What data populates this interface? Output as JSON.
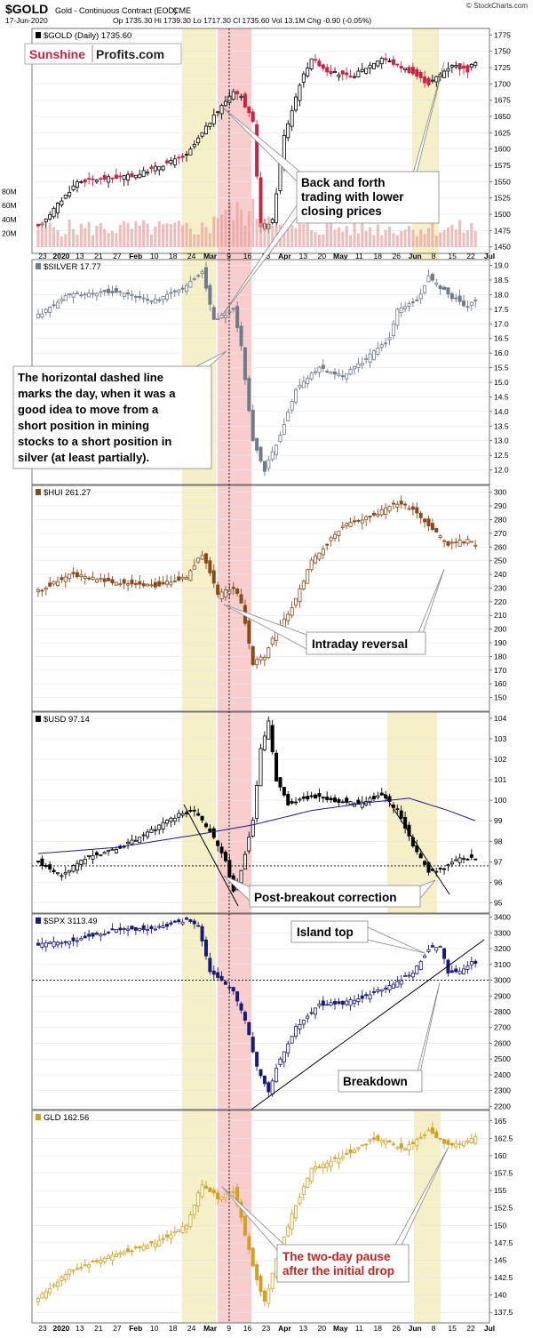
{
  "header": {
    "symbol": "$GOLD",
    "title": "Gold - Continuous Contract (EOD)",
    "exchange": "CME",
    "date": "17-Jun-2020",
    "ohlc": "Op 1735.30  Hi 1739.30  Lo 1717.30  Cl 1735.60  Vol 13.1M  Chg -0.90 (-0.05%)",
    "source": "© StockCharts.com"
  },
  "logo": {
    "part1": "Sunshine",
    "part2": "Profits.com"
  },
  "colors": {
    "up": "#000000",
    "shade_yellow": "#f6f0c8",
    "shade_red": "#f5c0c0",
    "callout_bg": "#ffffff",
    "ma_line": "#1a1a99",
    "volume": "#e8a0a0",
    "annotation_red": "#cc2222"
  },
  "x_axis": {
    "top_ticks": [
      "23",
      "2020",
      "13",
      "21",
      "27",
      "Feb",
      "10",
      "18",
      "24",
      "Mar",
      "9",
      "16",
      "23",
      "Apr",
      "13",
      "20",
      "May",
      "11",
      "18",
      "26",
      "Jun",
      "8",
      "15",
      "22",
      "Jul"
    ],
    "bottom_ticks": [
      "23",
      "2020",
      "13",
      "21",
      "27",
      "Feb",
      "10",
      "18",
      "24",
      "Mar",
      "9",
      "16",
      "23",
      "Apr",
      "13",
      "20",
      "May",
      "11",
      "18",
      "26",
      "Jun",
      "8",
      "15",
      "22",
      "Jul"
    ]
  },
  "annotations": {
    "back_forth": [
      "Back and forth",
      "trading with lower",
      "closing prices"
    ],
    "dashed_line": [
      "The horizontal dashed line",
      "marks the day, when it was a",
      "good idea to move from a",
      "short position in mining",
      "stocks to a short position in",
      "silver (at least partially)."
    ],
    "intraday_reversal": "Intraday reversal",
    "post_breakout": "Post-breakout correction",
    "island_top": "Island top",
    "breakdown": "Breakdown",
    "two_day_pause": [
      "The two-day pause",
      "after the initial drop"
    ]
  },
  "chart_data": [
    {
      "type": "candlestick",
      "name": "gold",
      "label": "$GOLD (Daily) 1735.60",
      "color": "#000000",
      "down_color": "#cc2244",
      "ylim": [
        1440,
        1785
      ],
      "y_ticks": [
        1450,
        1475,
        1500,
        1525,
        1550,
        1575,
        1600,
        1625,
        1650,
        1675,
        1700,
        1725,
        1750,
        1775
      ],
      "key_points": [
        [
          0,
          1480
        ],
        [
          10,
          1550
        ],
        [
          25,
          1560
        ],
        [
          38,
          1590
        ],
        [
          45,
          1650
        ],
        [
          50,
          1690
        ],
        [
          52,
          1680
        ],
        [
          55,
          1640
        ],
        [
          57,
          1480
        ],
        [
          60,
          1490
        ],
        [
          63,
          1620
        ],
        [
          67,
          1700
        ],
        [
          70,
          1740
        ],
        [
          74,
          1720
        ],
        [
          80,
          1710
        ],
        [
          88,
          1740
        ],
        [
          95,
          1720
        ],
        [
          100,
          1700
        ],
        [
          106,
          1730
        ],
        [
          110,
          1720
        ],
        [
          112,
          1735
        ]
      ],
      "volume": {
        "labels": [
          "80M",
          "60M",
          "40M",
          "20M"
        ],
        "values": [
          80,
          60,
          40,
          20
        ]
      },
      "last": 1735.6
    },
    {
      "type": "candlestick",
      "name": "silver",
      "label": "$SILVER 17.77",
      "color": "#707b88",
      "ylim": [
        11.5,
        19.2
      ],
      "y_ticks": [
        12.0,
        12.5,
        13.0,
        13.5,
        14.0,
        14.5,
        15.0,
        15.5,
        16.0,
        16.5,
        17.0,
        17.5,
        18.0,
        18.5,
        19.0
      ],
      "key_points": [
        [
          0,
          17.3
        ],
        [
          8,
          18.0
        ],
        [
          20,
          18.1
        ],
        [
          30,
          17.8
        ],
        [
          38,
          18.3
        ],
        [
          42,
          18.8
        ],
        [
          45,
          17.1
        ],
        [
          50,
          17.5
        ],
        [
          52,
          16.2
        ],
        [
          55,
          13.0
        ],
        [
          58,
          12.0
        ],
        [
          62,
          13.2
        ],
        [
          66,
          14.8
        ],
        [
          72,
          15.5
        ],
        [
          78,
          15.2
        ],
        [
          84,
          15.8
        ],
        [
          90,
          16.5
        ],
        [
          92,
          17.5
        ],
        [
          97,
          17.8
        ],
        [
          100,
          18.6
        ],
        [
          105,
          18.0
        ],
        [
          110,
          17.6
        ],
        [
          112,
          17.77
        ]
      ],
      "last": 17.77
    },
    {
      "type": "candlestick",
      "name": "hui",
      "label": "$HUI 261.27",
      "color": "#8b4a1c",
      "ylim": [
        140,
        305
      ],
      "y_ticks": [
        150,
        160,
        170,
        180,
        190,
        200,
        210,
        220,
        230,
        240,
        250,
        260,
        270,
        280,
        290,
        300
      ],
      "key_points": [
        [
          0,
          228
        ],
        [
          8,
          240
        ],
        [
          18,
          235
        ],
        [
          30,
          232
        ],
        [
          38,
          238
        ],
        [
          42,
          255
        ],
        [
          46,
          225
        ],
        [
          50,
          230
        ],
        [
          52,
          220
        ],
        [
          55,
          175
        ],
        [
          58,
          180
        ],
        [
          61,
          200
        ],
        [
          65,
          215
        ],
        [
          70,
          250
        ],
        [
          78,
          275
        ],
        [
          85,
          282
        ],
        [
          92,
          292
        ],
        [
          96,
          288
        ],
        [
          100,
          275
        ],
        [
          105,
          262
        ],
        [
          110,
          265
        ],
        [
          112,
          261
        ]
      ],
      "last": 261.27
    },
    {
      "type": "candlestick",
      "name": "usd",
      "label": "$USD 97.14",
      "color": "#000000",
      "ylim": [
        94.5,
        104.3
      ],
      "y_ticks": [
        95,
        96,
        97,
        98,
        99,
        100,
        101,
        102,
        103,
        104
      ],
      "key_points": [
        [
          0,
          97.0
        ],
        [
          6,
          96.3
        ],
        [
          12,
          97.2
        ],
        [
          20,
          97.6
        ],
        [
          28,
          98.4
        ],
        [
          36,
          99.3
        ],
        [
          40,
          99.5
        ],
        [
          44,
          98.5
        ],
        [
          48,
          97.0
        ],
        [
          50,
          95.5
        ],
        [
          52,
          96.6
        ],
        [
          55,
          99.0
        ],
        [
          57,
          102.5
        ],
        [
          59,
          103.8
        ],
        [
          61,
          101.0
        ],
        [
          64,
          99.8
        ],
        [
          70,
          100.2
        ],
        [
          76,
          100.0
        ],
        [
          82,
          99.8
        ],
        [
          88,
          100.3
        ],
        [
          92,
          99.5
        ],
        [
          96,
          97.8
        ],
        [
          100,
          96.5
        ],
        [
          104,
          96.7
        ],
        [
          108,
          97.2
        ],
        [
          112,
          97.14
        ]
      ],
      "moving_average": [
        [
          0,
          97.4
        ],
        [
          20,
          97.7
        ],
        [
          40,
          98.3
        ],
        [
          55,
          98.8
        ],
        [
          70,
          99.5
        ],
        [
          85,
          99.9
        ],
        [
          95,
          100.1
        ],
        [
          105,
          99.5
        ],
        [
          112,
          99.0
        ]
      ],
      "reference_level": 96.8,
      "last": 97.14
    },
    {
      "type": "candlestick",
      "name": "spx",
      "label": "$SPX 3113.49",
      "color": "#1a1a7a",
      "ylim": [
        2180,
        3420
      ],
      "y_ticks": [
        2200,
        2300,
        2400,
        2500,
        2600,
        2700,
        2800,
        2900,
        3000,
        3100,
        3200,
        3300,
        3400
      ],
      "key_points": [
        [
          0,
          3220
        ],
        [
          10,
          3260
        ],
        [
          20,
          3320
        ],
        [
          30,
          3330
        ],
        [
          38,
          3380
        ],
        [
          41,
          3350
        ],
        [
          44,
          3050
        ],
        [
          47,
          2990
        ],
        [
          50,
          2930
        ],
        [
          53,
          2750
        ],
        [
          56,
          2450
        ],
        [
          59,
          2290
        ],
        [
          61,
          2450
        ],
        [
          66,
          2700
        ],
        [
          72,
          2850
        ],
        [
          78,
          2850
        ],
        [
          84,
          2900
        ],
        [
          90,
          2960
        ],
        [
          96,
          3050
        ],
        [
          100,
          3200
        ],
        [
          103,
          3220
        ],
        [
          105,
          3050
        ],
        [
          108,
          3050
        ],
        [
          111,
          3110
        ],
        [
          112,
          3113
        ]
      ],
      "reference_level": 3000,
      "last": 3113.49
    },
    {
      "type": "candlestick",
      "name": "gld",
      "label": "GLD 162.56",
      "color": "#d4a020",
      "ylim": [
        136,
        166.5
      ],
      "y_ticks": [
        137.5,
        140.0,
        142.5,
        145.0,
        147.5,
        150.0,
        152.5,
        155.0,
        157.5,
        160.0,
        162.5,
        165.0
      ],
      "key_points": [
        [
          0,
          139.5
        ],
        [
          8,
          143.5
        ],
        [
          18,
          145.5
        ],
        [
          30,
          147.5
        ],
        [
          38,
          150.0
        ],
        [
          42,
          156.0
        ],
        [
          46,
          154.0
        ],
        [
          50,
          155.0
        ],
        [
          52,
          151.0
        ],
        [
          55,
          144.0
        ],
        [
          58,
          139.0
        ],
        [
          61,
          145.0
        ],
        [
          65,
          151.5
        ],
        [
          70,
          158.0
        ],
        [
          78,
          160.0
        ],
        [
          86,
          162.5
        ],
        [
          94,
          161.0
        ],
        [
          100,
          163.5
        ],
        [
          105,
          161.5
        ],
        [
          110,
          162.0
        ],
        [
          112,
          162.56
        ]
      ],
      "last": 162.56
    }
  ]
}
